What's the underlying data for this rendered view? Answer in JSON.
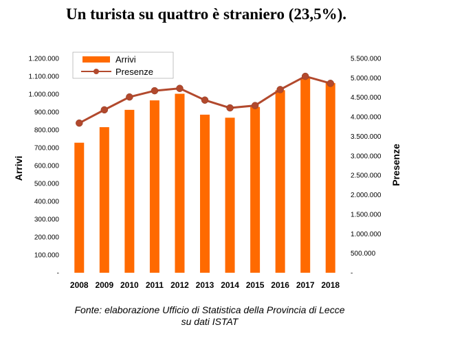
{
  "title": "Un turista su quattro è straniero (23,5%).",
  "source_line1": "Fonte: elaborazione Ufficio di Statistica della Provincia di Lecce",
  "source_line2": "su dati ISTAT",
  "colors": {
    "bars": "#ff6a00",
    "line": "#b2492d",
    "marker": "#b2492d"
  },
  "chart_data": {
    "type": "bar",
    "categories": [
      "2008",
      "2009",
      "2010",
      "2011",
      "2012",
      "2013",
      "2014",
      "2015",
      "2016",
      "2017",
      "2018"
    ],
    "series": [
      {
        "name": "Arrivi",
        "type": "bar",
        "axis": "left",
        "values": [
          728000,
          815000,
          912000,
          965000,
          1002000,
          885000,
          868000,
          928000,
          1022000,
          1090000,
          1062000
        ]
      },
      {
        "name": "Presenze",
        "type": "line",
        "axis": "right",
        "values": [
          3840000,
          4180000,
          4510000,
          4670000,
          4730000,
          4430000,
          4230000,
          4290000,
          4700000,
          5040000,
          4860000
        ]
      }
    ],
    "ylabel": "Arrivi",
    "ylabel_right": "Presenze",
    "ylim": [
      0,
      1200000
    ],
    "ylim_right": [
      0,
      5500000
    ],
    "yticks": [
      "-",
      "100.000",
      "200.000",
      "300.000",
      "400.000",
      "500.000",
      "600.000",
      "700.000",
      "800.000",
      "900.000",
      "1.000.000",
      "1.100.000",
      "1.200.000"
    ],
    "yticks_right": [
      "-",
      "500.000",
      "1.000.000",
      "1.500.000",
      "2.000.000",
      "2.500.000",
      "3.000.000",
      "3.500.000",
      "4.000.000",
      "4.500.000",
      "5.000.000",
      "5.500.000"
    ],
    "legend": "top-left",
    "grid": false
  }
}
